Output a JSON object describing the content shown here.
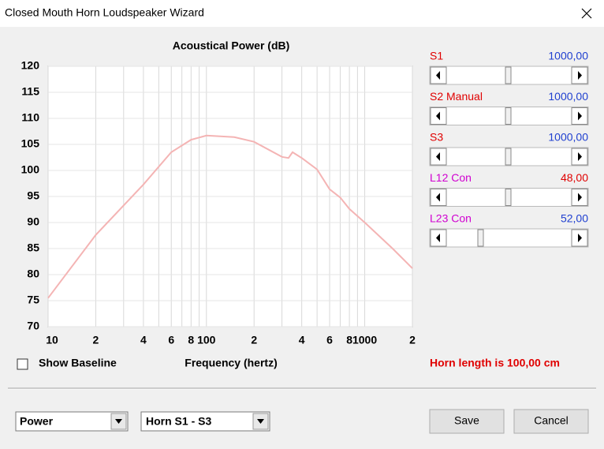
{
  "window": {
    "title": "Closed Mouth Horn Loudspeaker Wizard"
  },
  "chart_data": {
    "type": "line",
    "title": "Acoustical Power (dB)",
    "x_label": "Frequency (hertz)",
    "x": [
      10,
      20,
      40,
      60,
      80,
      100,
      150,
      200,
      300,
      330,
      350,
      400,
      500,
      600,
      700,
      800,
      1000,
      1500,
      2000
    ],
    "values": [
      75.5,
      87.6,
      97.3,
      103.5,
      105.9,
      106.7,
      106.4,
      105.5,
      102.6,
      102.4,
      103.5,
      102.4,
      100.2,
      96.4,
      94.8,
      92.6,
      90,
      85,
      81.2
    ],
    "color": "#f4b4b4",
    "xlim": [
      10,
      2000
    ],
    "x_log": true,
    "xticks": [
      10,
      {
        "value": 20,
        "label": "2"
      },
      {
        "value": 40,
        "label": "4"
      },
      {
        "value": 60,
        "label": "6"
      },
      {
        "value": 80,
        "label": "8"
      },
      100,
      {
        "value": 200,
        "label": "2"
      },
      {
        "value": 400,
        "label": "4"
      },
      {
        "value": 600,
        "label": "6"
      },
      {
        "value": 800,
        "label": "8"
      },
      1000,
      {
        "value": 2000,
        "label": "2"
      }
    ],
    "x_minor_grid": [
      30,
      50,
      70,
      90,
      300,
      500,
      700,
      900
    ],
    "ylim": [
      70,
      120
    ],
    "yticks": [
      70,
      75,
      80,
      85,
      90,
      95,
      100,
      105,
      110,
      115,
      120
    ],
    "grid": true
  },
  "sliders": [
    {
      "label": "S1",
      "value": "1000,00",
      "label_color": "#e00000",
      "value_color": "#2040d0"
    },
    {
      "label": "S2  Manual",
      "value": "1000,00",
      "label_color": "#e00000",
      "value_color": "#2040d0"
    },
    {
      "label": "S3",
      "value": "1000,00",
      "label_color": "#e00000",
      "value_color": "#2040d0"
    },
    {
      "label": "L12  Con",
      "value": "48,00",
      "label_color": "#d000d0",
      "value_color": "#e00000"
    },
    {
      "label": "L23  Con",
      "value": "52,00",
      "label_color": "#d000d0",
      "value_color": "#2040d0"
    }
  ],
  "horn_length": "Horn length is 100,00 cm",
  "checkbox": "Show Baseline",
  "dropdowns": [
    "Power",
    "Horn S1 - S3"
  ],
  "buttons": [
    "Save",
    "Cancel"
  ]
}
